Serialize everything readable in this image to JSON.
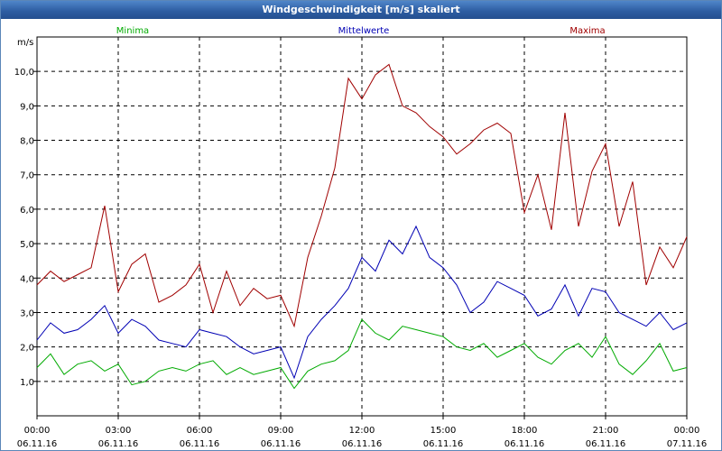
{
  "window": {
    "title": "Windgeschwindigkeit [m/s] skaliert"
  },
  "colors": {
    "minima": "#00aa00",
    "mean": "#0000b4",
    "maxima": "#a00000",
    "grid": "#000000",
    "titlebar": "#2e5ea3"
  },
  "chart_data": {
    "type": "line",
    "title": "Windgeschwindigkeit [m/s] skaliert",
    "ylabel": "m/s",
    "xlabel": "",
    "ylim": [
      0.0,
      11.0
    ],
    "xlim": [
      0,
      24
    ],
    "grid": true,
    "legend_position": "top",
    "y_ticks": [
      "1,0",
      "2,0",
      "3,0",
      "4,0",
      "5,0",
      "6,0",
      "7,0",
      "8,0",
      "9,0",
      "10,0"
    ],
    "x_ticks": [
      {
        "time": "00:00",
        "date": "06.11.16"
      },
      {
        "time": "03:00",
        "date": "06.11.16"
      },
      {
        "time": "06:00",
        "date": "06.11.16"
      },
      {
        "time": "09:00",
        "date": "06.11.16"
      },
      {
        "time": "12:00",
        "date": "06.11.16"
      },
      {
        "time": "15:00",
        "date": "06.11.16"
      },
      {
        "time": "18:00",
        "date": "06.11.16"
      },
      {
        "time": "21:00",
        "date": "06.11.16"
      },
      {
        "time": "00:00",
        "date": "07.11.16"
      }
    ],
    "x_hours": [
      0,
      0.5,
      1,
      1.5,
      2,
      2.5,
      3,
      3.5,
      4,
      4.5,
      5,
      5.5,
      6,
      6.5,
      7,
      7.5,
      8,
      8.5,
      9,
      9.5,
      10,
      10.5,
      11,
      11.5,
      12,
      12.5,
      13,
      13.5,
      14,
      14.5,
      15,
      15.5,
      16,
      16.5,
      17,
      17.5,
      18,
      18.5,
      19,
      19.5,
      20,
      20.5,
      21,
      21.5,
      22,
      22.5,
      23,
      23.5,
      24
    ],
    "series": [
      {
        "name": "Minima",
        "key": "minima",
        "values": [
          1.4,
          1.8,
          1.2,
          1.5,
          1.6,
          1.3,
          1.5,
          0.9,
          1.0,
          1.3,
          1.4,
          1.3,
          1.5,
          1.6,
          1.2,
          1.4,
          1.2,
          1.3,
          1.4,
          0.8,
          1.3,
          1.5,
          1.6,
          1.9,
          2.8,
          2.4,
          2.2,
          2.6,
          2.5,
          2.4,
          2.3,
          2.0,
          1.9,
          2.1,
          1.7,
          1.9,
          2.1,
          1.7,
          1.5,
          1.9,
          2.1,
          1.7,
          2.3,
          1.5,
          1.2,
          1.6,
          2.1,
          1.3,
          1.4
        ]
      },
      {
        "name": "Mittelwerte",
        "key": "mean",
        "values": [
          2.2,
          2.7,
          2.4,
          2.5,
          2.8,
          3.2,
          2.4,
          2.8,
          2.6,
          2.2,
          2.1,
          2.0,
          2.5,
          2.4,
          2.3,
          2.0,
          1.8,
          1.9,
          2.0,
          1.1,
          2.3,
          2.8,
          3.2,
          3.7,
          4.6,
          4.2,
          5.1,
          4.7,
          5.5,
          4.6,
          4.3,
          3.8,
          3.0,
          3.3,
          3.9,
          3.7,
          3.5,
          2.9,
          3.1,
          3.8,
          2.9,
          3.7,
          3.6,
          3.0,
          2.8,
          2.6,
          3.0,
          2.5,
          2.7
        ]
      },
      {
        "name": "Maxima",
        "key": "maxima",
        "values": [
          3.8,
          4.2,
          3.9,
          4.1,
          4.3,
          6.1,
          3.6,
          4.4,
          4.7,
          3.3,
          3.5,
          3.8,
          4.4,
          3.0,
          4.2,
          3.2,
          3.7,
          3.4,
          3.5,
          2.6,
          4.6,
          5.8,
          7.2,
          9.8,
          9.2,
          9.9,
          10.2,
          9.0,
          8.8,
          8.4,
          8.1,
          7.6,
          7.9,
          8.3,
          8.5,
          8.2,
          5.9,
          7.0,
          5.4,
          8.8,
          5.5,
          7.1,
          7.9,
          5.5,
          6.8,
          3.8,
          4.9,
          4.3,
          5.2
        ]
      }
    ]
  }
}
